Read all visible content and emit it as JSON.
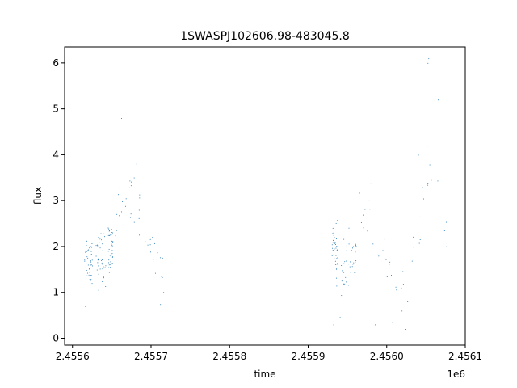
{
  "chart_data": {
    "type": "scatter",
    "title": "1SWASPJ102606.98-483045.8",
    "xlabel": "time",
    "ylabel": "flux",
    "x_offset_label": "1e6",
    "xlim": [
      2.45559,
      2.4561
    ],
    "ylim": [
      -0.15,
      6.35
    ],
    "x_ticks": [
      2.4556,
      2.4557,
      2.4558,
      2.4559,
      2.456,
      2.4561
    ],
    "x_tick_labels": [
      "2.4556",
      "2.4557",
      "2.4558",
      "2.4559",
      "2.4560",
      "2.4561"
    ],
    "y_ticks": [
      0,
      1,
      2,
      3,
      4,
      5,
      6
    ],
    "y_tick_labels": [
      "0",
      "1",
      "2",
      "3",
      "4",
      "5",
      "6"
    ],
    "grid": false,
    "marker_color": "#1f77b4",
    "trend": [
      [
        2.455615,
        1.8
      ],
      [
        2.455625,
        1.7
      ],
      [
        2.455635,
        1.75
      ],
      [
        2.455645,
        1.8
      ],
      [
        2.455652,
        2.1
      ],
      [
        2.45566,
        2.8
      ],
      [
        2.455668,
        3.0
      ],
      [
        2.455675,
        3.2
      ],
      [
        2.455682,
        3.0
      ],
      [
        2.45569,
        2.8
      ],
      [
        2.455697,
        2.3
      ],
      [
        2.455705,
        1.6
      ],
      [
        2.455712,
        1.3
      ],
      [
        2.455718,
        1.2
      ],
      [
        2.45593,
        2.3
      ],
      [
        2.455935,
        1.9
      ],
      [
        2.455942,
        1.2
      ],
      [
        2.45595,
        1.9
      ],
      [
        2.455957,
        1.7
      ],
      [
        2.455965,
        2.3
      ],
      [
        2.455973,
        2.7
      ],
      [
        2.45598,
        2.6
      ],
      [
        2.455987,
        2.2
      ],
      [
        2.455995,
        1.6
      ],
      [
        2.456003,
        1.4
      ],
      [
        2.456012,
        1.1
      ],
      [
        2.45602,
        1.2
      ],
      [
        2.456028,
        1.6
      ],
      [
        2.456036,
        2.0
      ],
      [
        2.456044,
        2.6
      ],
      [
        2.456052,
        3.6
      ],
      [
        2.45606,
        3.2
      ],
      [
        2.456068,
        2.8
      ],
      [
        2.456076,
        2.3
      ],
      [
        2.456083,
        2.2
      ]
    ],
    "segments": [
      [
        2.455615,
        2.455625
      ],
      [
        2.455628,
        2.455642
      ],
      [
        2.455645,
        2.455651
      ],
      [
        2.455654,
        2.455718
      ],
      [
        2.45593,
        2.455937
      ],
      [
        2.45594,
        2.455962
      ],
      [
        2.455965,
        2.456083
      ]
    ],
    "outliers": [
      [
        2.455697,
        5.8
      ],
      [
        2.455697,
        5.4
      ],
      [
        2.455697,
        5.2
      ],
      [
        2.455662,
        4.8
      ],
      [
        2.455932,
        4.2
      ],
      [
        2.455935,
        4.2
      ],
      [
        2.456052,
        6.0
      ],
      [
        2.456053,
        6.1
      ],
      [
        2.456065,
        5.2
      ],
      [
        2.455932,
        0.3
      ],
      [
        2.455985,
        0.3
      ],
      [
        2.456023,
        0.2
      ],
      [
        2.456019,
        0.6
      ],
      [
        2.455616,
        0.7
      ],
      [
        2.45604,
        4.0
      ],
      [
        2.456007,
        0.35
      ]
    ]
  }
}
